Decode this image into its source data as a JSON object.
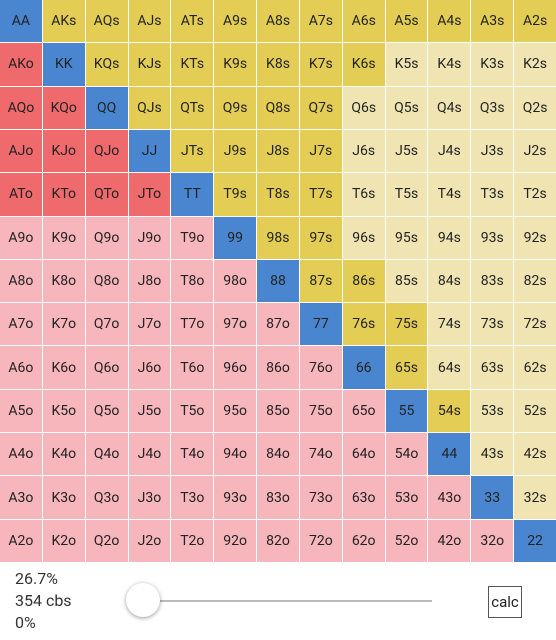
{
  "grid": {
    "rows": [
      [
        "AA",
        "AKs",
        "AQs",
        "AJs",
        "ATs",
        "A9s",
        "A8s",
        "A7s",
        "A6s",
        "A5s",
        "A4s",
        "A3s",
        "A2s"
      ],
      [
        "AKo",
        "KK",
        "KQs",
        "KJs",
        "KTs",
        "K9s",
        "K8s",
        "K7s",
        "K6s",
        "K5s",
        "K4s",
        "K3s",
        "K2s"
      ],
      [
        "AQo",
        "KQo",
        "QQ",
        "QJs",
        "QTs",
        "Q9s",
        "Q8s",
        "Q7s",
        "Q6s",
        "Q5s",
        "Q4s",
        "Q3s",
        "Q2s"
      ],
      [
        "AJo",
        "KJo",
        "QJo",
        "JJ",
        "JTs",
        "J9s",
        "J8s",
        "J7s",
        "J6s",
        "J5s",
        "J4s",
        "J3s",
        "J2s"
      ],
      [
        "ATo",
        "KTo",
        "QTo",
        "JTo",
        "TT",
        "T9s",
        "T8s",
        "T7s",
        "T6s",
        "T5s",
        "T4s",
        "T3s",
        "T2s"
      ],
      [
        "A9o",
        "K9o",
        "Q9o",
        "J9o",
        "T9o",
        "99",
        "98s",
        "97s",
        "96s",
        "95s",
        "94s",
        "93s",
        "92s"
      ],
      [
        "A8o",
        "K8o",
        "Q8o",
        "J8o",
        "T8o",
        "98o",
        "88",
        "87s",
        "86s",
        "85s",
        "84s",
        "83s",
        "82s"
      ],
      [
        "A7o",
        "K7o",
        "Q7o",
        "J7o",
        "T7o",
        "97o",
        "87o",
        "77",
        "76s",
        "75s",
        "74s",
        "73s",
        "72s"
      ],
      [
        "A6o",
        "K6o",
        "Q6o",
        "J6o",
        "T6o",
        "96o",
        "86o",
        "76o",
        "66",
        "65s",
        "64s",
        "63s",
        "62s"
      ],
      [
        "A5o",
        "K5o",
        "Q5o",
        "J5o",
        "T5o",
        "95o",
        "85o",
        "75o",
        "65o",
        "55",
        "54s",
        "53s",
        "52s"
      ],
      [
        "A4o",
        "K4o",
        "Q4o",
        "J4o",
        "T4o",
        "94o",
        "84o",
        "74o",
        "64o",
        "54o",
        "44",
        "43s",
        "42s"
      ],
      [
        "A3o",
        "K3o",
        "Q3o",
        "J3o",
        "T3o",
        "93o",
        "83o",
        "73o",
        "63o",
        "53o",
        "43o",
        "33",
        "32s"
      ],
      [
        "A2o",
        "K2o",
        "Q2o",
        "J2o",
        "T2o",
        "92o",
        "82o",
        "72o",
        "62o",
        "52o",
        "42o",
        "32o",
        "22"
      ]
    ],
    "selected": [
      [
        1,
        1,
        1,
        1,
        1,
        1,
        1,
        1,
        1,
        1,
        1,
        1,
        1
      ],
      [
        1,
        1,
        1,
        1,
        1,
        1,
        1,
        1,
        1,
        0,
        0,
        0,
        0
      ],
      [
        1,
        1,
        1,
        1,
        1,
        1,
        1,
        1,
        0,
        0,
        0,
        0,
        0
      ],
      [
        1,
        1,
        1,
        1,
        1,
        1,
        1,
        1,
        0,
        0,
        0,
        0,
        0
      ],
      [
        1,
        1,
        1,
        1,
        1,
        1,
        1,
        1,
        0,
        0,
        0,
        0,
        0
      ],
      [
        0,
        0,
        0,
        0,
        0,
        1,
        1,
        1,
        0,
        0,
        0,
        0,
        0
      ],
      [
        0,
        0,
        0,
        0,
        0,
        0,
        1,
        1,
        1,
        0,
        0,
        0,
        0
      ],
      [
        0,
        0,
        0,
        0,
        0,
        0,
        0,
        1,
        1,
        1,
        0,
        0,
        0
      ],
      [
        0,
        0,
        0,
        0,
        0,
        0,
        0,
        0,
        1,
        1,
        0,
        0,
        0
      ],
      [
        0,
        0,
        0,
        0,
        0,
        0,
        0,
        0,
        0,
        1,
        1,
        0,
        0
      ],
      [
        0,
        0,
        0,
        0,
        0,
        0,
        0,
        0,
        0,
        0,
        1,
        0,
        0
      ],
      [
        0,
        0,
        0,
        0,
        0,
        0,
        0,
        0,
        0,
        0,
        0,
        1,
        0
      ],
      [
        0,
        0,
        0,
        0,
        0,
        0,
        0,
        0,
        0,
        0,
        0,
        0,
        1
      ]
    ]
  },
  "stats": {
    "percent": "26.7%",
    "combos": "354 cbs",
    "slider": "0%"
  },
  "button": "calc"
}
